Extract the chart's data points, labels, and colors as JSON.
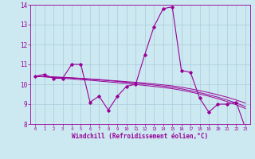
{
  "xlabel": "Windchill (Refroidissement éolien,°C)",
  "x_values": [
    0,
    1,
    2,
    3,
    4,
    5,
    6,
    7,
    8,
    9,
    10,
    11,
    12,
    13,
    14,
    15,
    16,
    17,
    18,
    19,
    20,
    21,
    22,
    23
  ],
  "line1_y": [
    10.4,
    10.5,
    10.3,
    10.3,
    11.0,
    11.0,
    9.1,
    9.4,
    8.7,
    9.4,
    9.9,
    10.0,
    11.5,
    12.9,
    13.8,
    13.9,
    10.7,
    10.6,
    9.3,
    8.6,
    9.0,
    9.0,
    9.1,
    7.8
  ],
  "line2_y": [
    10.4,
    10.39,
    10.37,
    10.35,
    10.33,
    10.3,
    10.27,
    10.24,
    10.2,
    10.17,
    10.13,
    10.1,
    10.06,
    10.02,
    9.97,
    9.92,
    9.85,
    9.77,
    9.68,
    9.58,
    9.47,
    9.35,
    9.21,
    9.05
  ],
  "line3_y": [
    10.4,
    10.38,
    10.36,
    10.34,
    10.31,
    10.28,
    10.25,
    10.22,
    10.18,
    10.14,
    10.1,
    10.06,
    10.01,
    9.96,
    9.91,
    9.85,
    9.77,
    9.68,
    9.58,
    9.47,
    9.35,
    9.21,
    9.06,
    8.88
  ],
  "line4_y": [
    10.4,
    10.37,
    10.34,
    10.3,
    10.27,
    10.23,
    10.2,
    10.16,
    10.12,
    10.08,
    10.04,
    9.99,
    9.94,
    9.89,
    9.84,
    9.78,
    9.7,
    9.61,
    9.51,
    9.4,
    9.27,
    9.13,
    8.97,
    8.78
  ],
  "line_color": "#990099",
  "bg_color": "#cce8f0",
  "grid_color": "#aaccdd",
  "ylim": [
    8,
    14
  ],
  "yticks": [
    8,
    9,
    10,
    11,
    12,
    13,
    14
  ],
  "xlim": [
    -0.5,
    23.5
  ]
}
